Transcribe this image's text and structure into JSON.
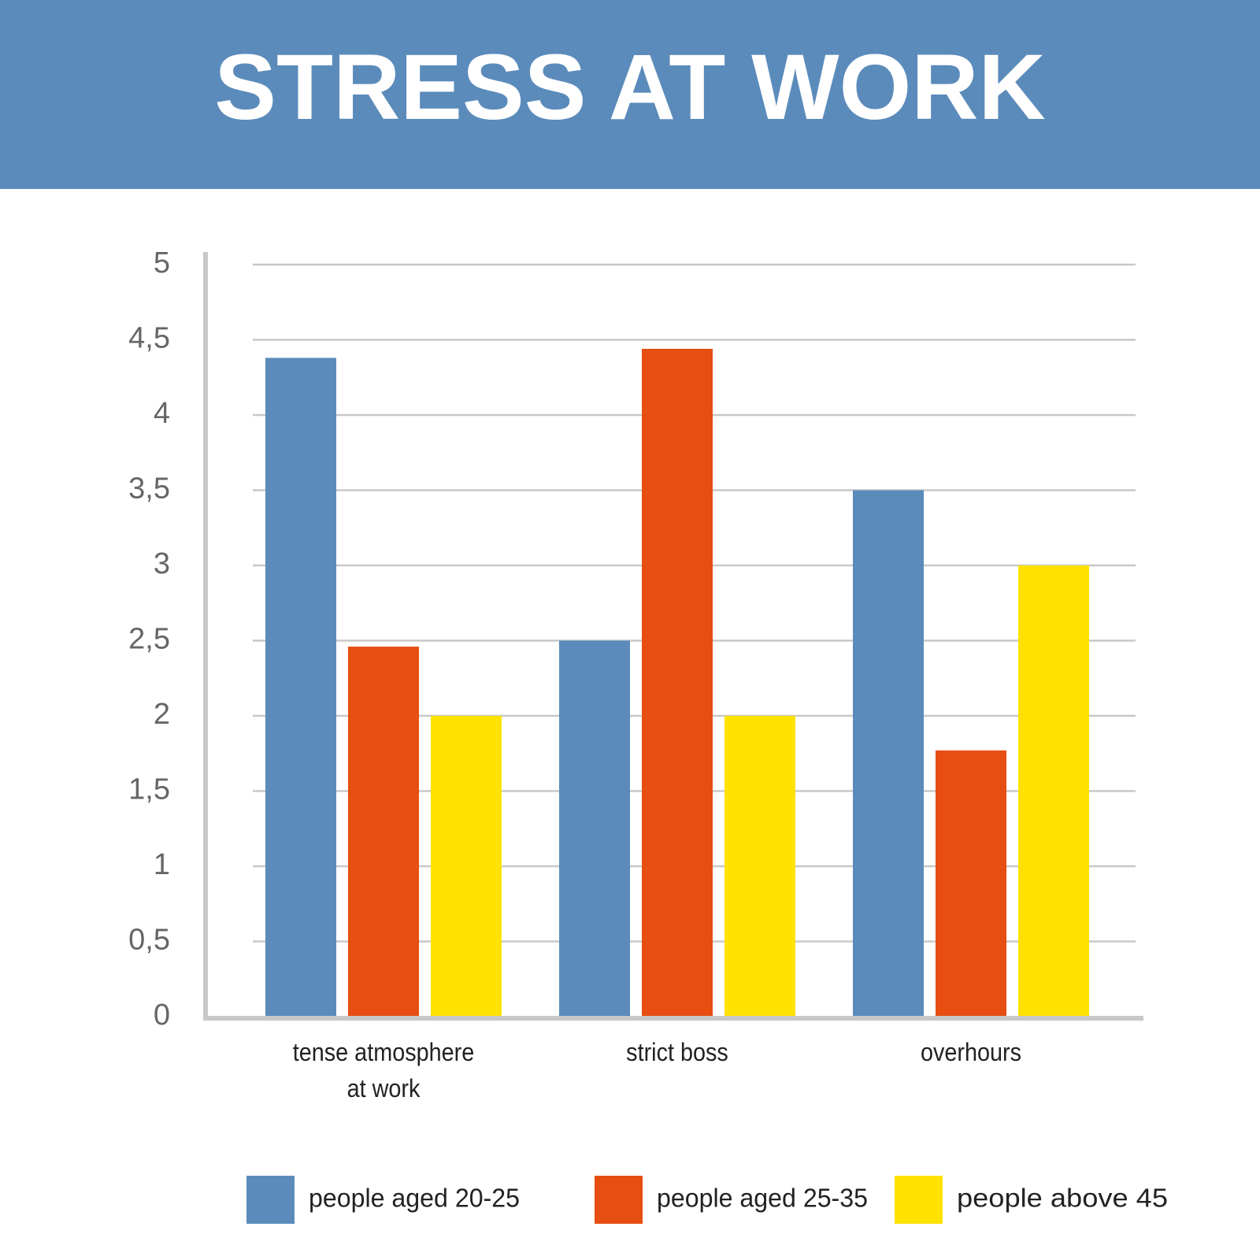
{
  "chart_data": {
    "type": "bar",
    "title": "STRESS AT WORK",
    "categories": [
      "tense atmosphere at work",
      "strict boss",
      "overhours"
    ],
    "series": [
      {
        "name": "people aged 20-25",
        "color": "#5b8bbb",
        "values": [
          4.38,
          2.5,
          3.5
        ]
      },
      {
        "name": "people aged 25-35",
        "color": "#e64e12",
        "values": [
          2.46,
          4.44,
          1.77
        ]
      },
      {
        "name": "people above 45",
        "color": "#ffe200",
        "values": [
          2.0,
          2.0,
          3.0
        ]
      }
    ],
    "ylim": [
      0,
      5
    ],
    "yticks": [
      0,
      {
        "value": 0.5,
        "label": "0,5"
      },
      1,
      {
        "value": 1.5,
        "label": "1,5"
      },
      2,
      {
        "value": 2.5,
        "label": "2,5"
      },
      3,
      {
        "value": 3.5,
        "label": "3,5"
      },
      4,
      {
        "value": 4.5,
        "label": "4,5"
      },
      5
    ],
    "grid": true
  }
}
